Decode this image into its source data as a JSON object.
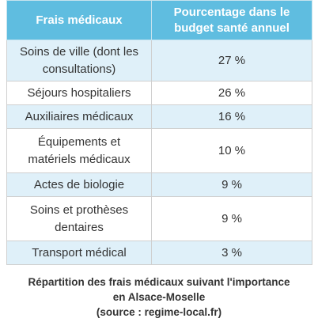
{
  "table": {
    "headers": [
      "Frais médicaux",
      "Pourcentage dans le budget santé annuel"
    ],
    "rows": [
      {
        "label": "Soins de ville (dont les consultations)",
        "value": "27 %"
      },
      {
        "label": "Séjours hospitaliers",
        "value": "26 %"
      },
      {
        "label": "Auxiliaires médicaux",
        "value": "16 %"
      },
      {
        "label": "Équipements et matériels médicaux",
        "value": "10 %"
      },
      {
        "label": "Actes de biologie",
        "value": "9 %"
      },
      {
        "label": "Soins et prothèses dentaires",
        "value": "9 %"
      },
      {
        "label": "Transport médical",
        "value": "3 %"
      }
    ]
  },
  "caption": {
    "line1": "Répartition des frais médicaux suivant l'importance",
    "line2": "en Alsace-Moselle",
    "line3": "(source : regime-local.fr)"
  },
  "colors": {
    "header_bg": "#5fbde0",
    "row_alt_bg": "#dff0f9"
  }
}
